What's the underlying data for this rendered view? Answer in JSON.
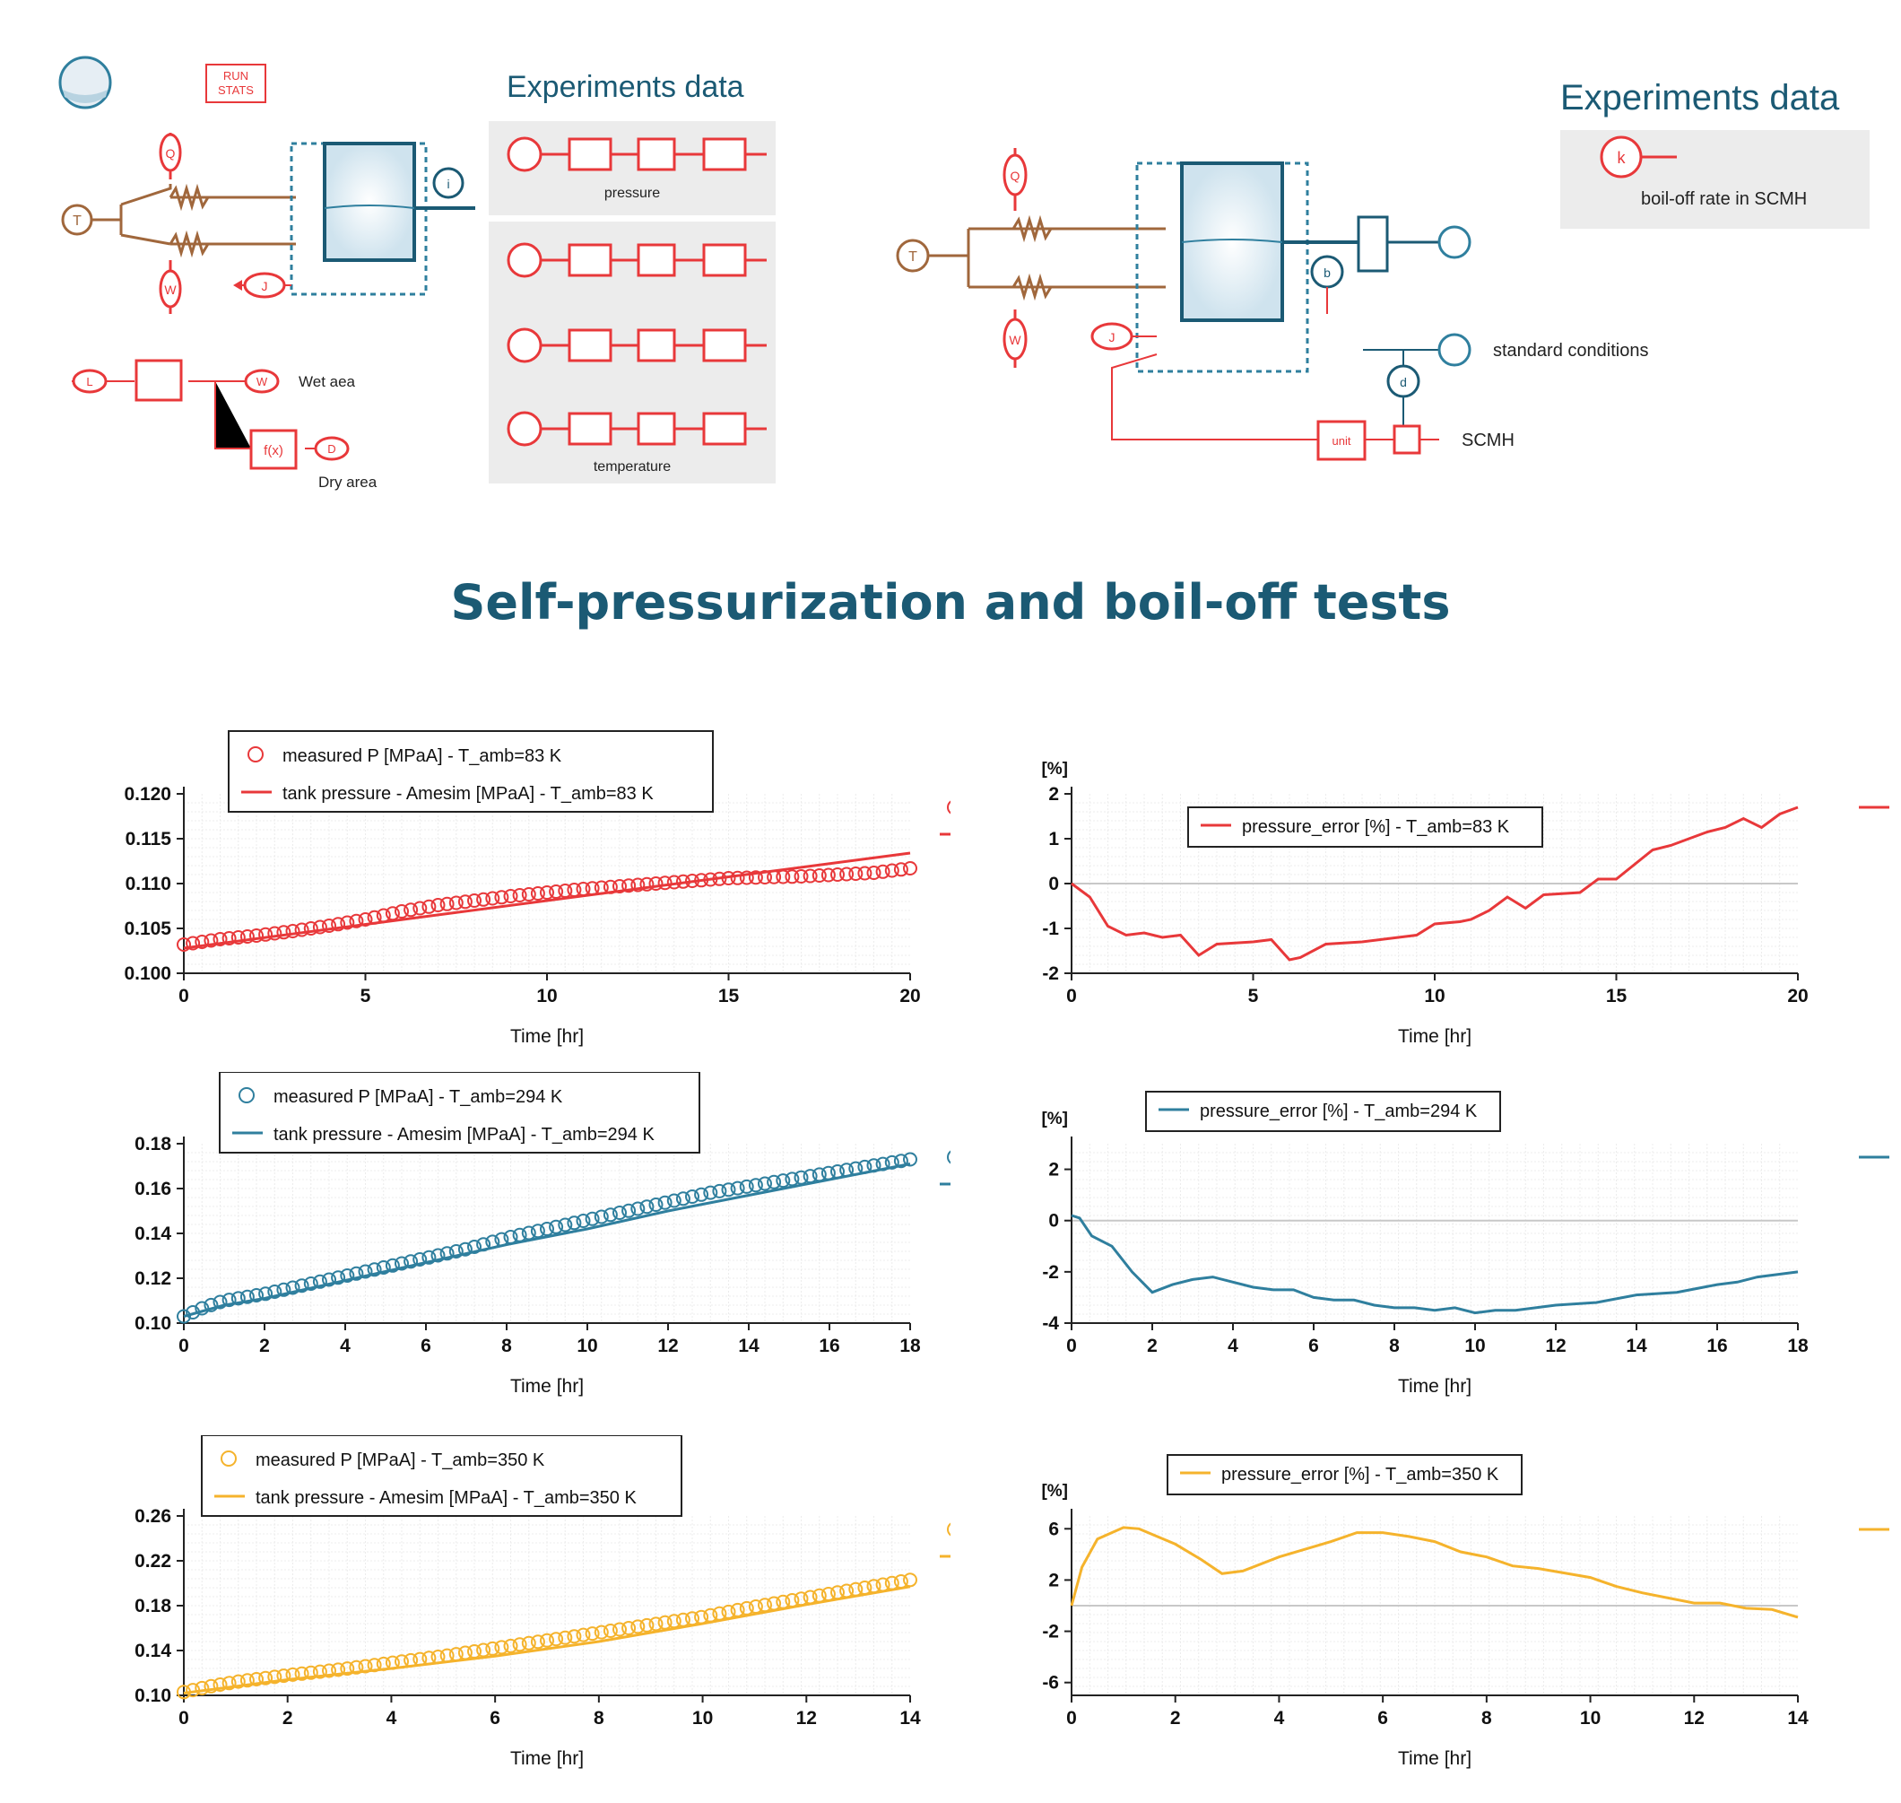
{
  "colors": {
    "red": "#e8383a",
    "teal": "#2f7f9e",
    "orange": "#f5b32c",
    "brown": "#a0673c",
    "blue": "#1b5a74",
    "panel": "#ececec"
  },
  "diagram": {
    "run_stats_label_1": "RUN",
    "run_stats_label_2": "STATS",
    "left_panel_title": "Experiments data",
    "pressure_label": "pressure",
    "temperature_label": "temperature",
    "wet_label": "Wet aea",
    "dry_label": "Dry area",
    "unit_label": "unit",
    "fx_label": "f(x)",
    "right_panel_title": "Experiments data",
    "boiloff_label": "boil-off rate in SCMH",
    "standard_conditions": "standard conditions",
    "scmh_label": "SCMH",
    "letters": {
      "T": "T",
      "Q": "Q",
      "W": "W",
      "J": "J",
      "L": "L",
      "D": "D",
      "k": "k",
      "b": "b",
      "d": "d",
      "i": "i"
    }
  },
  "page_title": "Self-pressurization and boil-off tests",
  "chart_data": [
    {
      "type": "scatter+line",
      "panel": "pressure-83K",
      "color": "#e8383a",
      "title": "",
      "xlabel": "Time [hr]",
      "ylabel": "",
      "xlim": [
        0,
        20
      ],
      "ylim": [
        0.1,
        0.12
      ],
      "xticks": [
        0,
        5,
        10,
        15,
        20
      ],
      "yticks": [
        "0.100",
        "0.105",
        "0.110",
        "0.115",
        "0.120"
      ],
      "legend": [
        "measured P [MPaA] - T_amb=83 K",
        "tank pressure - Amesim [MPaA] - T_amb=83 K"
      ],
      "series": [
        {
          "name": "measured P [MPaA] - T_amb=83 K",
          "style": "markers",
          "x": [
            0,
            1,
            2,
            3,
            4,
            5,
            6,
            7,
            8,
            9,
            10,
            11,
            12,
            13,
            14,
            15,
            16,
            17,
            18,
            19,
            20
          ],
          "y": [
            0.1032,
            0.1038,
            0.1042,
            0.1047,
            0.1053,
            0.106,
            0.1069,
            0.1076,
            0.1081,
            0.1086,
            0.109,
            0.1094,
            0.1097,
            0.11,
            0.1103,
            0.1106,
            0.1107,
            0.1108,
            0.111,
            0.1112,
            0.1117
          ]
        },
        {
          "name": "tank pressure - Amesim [MPaA] - T_amb=83 K",
          "style": "line",
          "x": [
            0,
            20
          ],
          "y": [
            0.1028,
            0.1134
          ]
        }
      ]
    },
    {
      "type": "line",
      "panel": "error-83K",
      "color": "#e8383a",
      "title": "",
      "xlabel": "Time [hr]",
      "ylabel": "[%]",
      "xlim": [
        0,
        20
      ],
      "ylim": [
        -2,
        2
      ],
      "xticks": [
        0,
        5,
        10,
        15,
        20
      ],
      "yticks": [
        "-2",
        "-1",
        "0",
        "1",
        "2"
      ],
      "legend": [
        "pressure_error [%] - T_amb=83 K"
      ],
      "series": [
        {
          "name": "pressure_error [%] - T_amb=83 K",
          "style": "line",
          "x": [
            0,
            0.5,
            1,
            1.5,
            2,
            2.5,
            3,
            3.5,
            4,
            5,
            5.5,
            6,
            6.3,
            7,
            8,
            9,
            9.5,
            10,
            10.7,
            11,
            11.5,
            12,
            12.5,
            13,
            14,
            14.5,
            15,
            16,
            16.5,
            17,
            17.5,
            18,
            18.5,
            19,
            19.5,
            20
          ],
          "y": [
            0,
            -0.3,
            -0.95,
            -1.15,
            -1.1,
            -1.2,
            -1.15,
            -1.6,
            -1.35,
            -1.3,
            -1.25,
            -1.7,
            -1.65,
            -1.35,
            -1.3,
            -1.2,
            -1.15,
            -0.9,
            -0.85,
            -0.8,
            -0.6,
            -0.3,
            -0.55,
            -0.25,
            -0.2,
            0.1,
            0.1,
            0.75,
            0.85,
            1.0,
            1.15,
            1.25,
            1.45,
            1.25,
            1.55,
            1.7
          ]
        }
      ]
    },
    {
      "type": "scatter+line",
      "panel": "pressure-294K",
      "color": "#2f7f9e",
      "title": "",
      "xlabel": "Time [hr]",
      "ylabel": "",
      "xlim": [
        0,
        18
      ],
      "ylim": [
        0.1,
        0.18
      ],
      "xticks": [
        0,
        2,
        4,
        6,
        8,
        10,
        12,
        14,
        16,
        18
      ],
      "yticks": [
        "0.10",
        "0.12",
        "0.14",
        "0.16",
        "0.18"
      ],
      "legend": [
        "measured P [MPaA] - T_amb=294 K",
        "tank pressure - Amesim [MPaA] - T_amb=294 K"
      ],
      "series": [
        {
          "name": "measured P [MPaA] - T_amb=294 K",
          "style": "markers",
          "x": [
            0,
            0.5,
            1,
            2,
            3,
            4,
            5,
            6,
            7,
            8,
            9,
            10,
            11,
            12,
            13,
            14,
            15,
            16,
            17,
            18
          ],
          "y": [
            0.103,
            0.107,
            0.11,
            0.113,
            0.117,
            0.121,
            0.125,
            0.129,
            0.133,
            0.138,
            0.142,
            0.146,
            0.15,
            0.154,
            0.158,
            0.161,
            0.164,
            0.167,
            0.17,
            0.173
          ]
        },
        {
          "name": "tank pressure - Amesim [MPaA] - T_amb=294 K",
          "style": "line",
          "x": [
            0,
            1,
            2,
            4,
            6,
            8,
            10,
            12,
            14,
            16,
            18
          ],
          "y": [
            0.103,
            0.108,
            0.111,
            0.119,
            0.127,
            0.135,
            0.142,
            0.15,
            0.157,
            0.164,
            0.171
          ]
        }
      ]
    },
    {
      "type": "line",
      "panel": "error-294K",
      "color": "#2f7f9e",
      "title": "",
      "xlabel": "Time [hr]",
      "ylabel": "[%]",
      "xlim": [
        0,
        18
      ],
      "ylim": [
        -4,
        3
      ],
      "xticks": [
        0,
        2,
        4,
        6,
        8,
        10,
        12,
        14,
        16,
        18
      ],
      "yticks": [
        "-4",
        "-2",
        "0",
        "2"
      ],
      "legend": [
        "pressure_error [%] - T_amb=294 K"
      ],
      "series": [
        {
          "name": "pressure_error [%] - T_amb=294 K",
          "style": "line",
          "x": [
            0,
            0.2,
            0.5,
            1,
            1.5,
            2,
            2.5,
            3,
            3.5,
            4,
            4.5,
            5,
            5.5,
            6,
            6.5,
            7,
            7.5,
            8,
            8.5,
            9,
            9.5,
            10,
            10.5,
            11,
            12,
            13,
            14,
            15,
            16,
            16.5,
            17,
            17.5,
            18
          ],
          "y": [
            0.2,
            0.1,
            -0.6,
            -1.0,
            -2.0,
            -2.8,
            -2.5,
            -2.3,
            -2.2,
            -2.4,
            -2.6,
            -2.7,
            -2.7,
            -3.0,
            -3.1,
            -3.1,
            -3.3,
            -3.4,
            -3.4,
            -3.5,
            -3.4,
            -3.6,
            -3.5,
            -3.5,
            -3.3,
            -3.2,
            -2.9,
            -2.8,
            -2.5,
            -2.4,
            -2.2,
            -2.1,
            -2.0
          ]
        }
      ]
    },
    {
      "type": "scatter+line",
      "panel": "pressure-350K",
      "color": "#f5b32c",
      "title": "",
      "xlabel": "Time [hr]",
      "ylabel": "",
      "xlim": [
        0,
        14
      ],
      "ylim": [
        0.1,
        0.26
      ],
      "xticks": [
        0,
        2,
        4,
        6,
        8,
        10,
        12,
        14
      ],
      "yticks": [
        "0.10",
        "0.14",
        "0.18",
        "0.22",
        "0.26"
      ],
      "legend": [
        "measured P [MPaA] - T_amb=350 K",
        "tank pressure - Amesim [MPaA] - T_amb=350 K"
      ],
      "series": [
        {
          "name": "measured P [MPaA] - T_amb=350 K",
          "style": "markers",
          "x": [
            0,
            0.5,
            1,
            2,
            3,
            4,
            5,
            6,
            7,
            8,
            9,
            10,
            11,
            12,
            13,
            14
          ],
          "y": [
            0.103,
            0.108,
            0.112,
            0.118,
            0.123,
            0.129,
            0.135,
            0.142,
            0.149,
            0.156,
            0.163,
            0.17,
            0.179,
            0.187,
            0.195,
            0.203
          ]
        },
        {
          "name": "tank pressure - Amesim [MPaA] - T_amb=350 K",
          "style": "line",
          "x": [
            0,
            1,
            2,
            4,
            6,
            8,
            10,
            12,
            14
          ],
          "y": [
            0.102,
            0.108,
            0.114,
            0.124,
            0.135,
            0.148,
            0.164,
            0.181,
            0.197
          ]
        }
      ]
    },
    {
      "type": "line",
      "panel": "error-350K",
      "color": "#f5b32c",
      "title": "",
      "xlabel": "Time [hr]",
      "ylabel": "[%]",
      "xlim": [
        0,
        14
      ],
      "ylim": [
        -7,
        7
      ],
      "xticks": [
        0,
        2,
        4,
        6,
        8,
        10,
        12,
        14
      ],
      "yticks": [
        "-6",
        "-2",
        "2",
        "6"
      ],
      "legend": [
        "pressure_error [%] - T_amb=350 K"
      ],
      "series": [
        {
          "name": "pressure_error [%] - T_amb=350 K",
          "style": "line",
          "x": [
            0,
            0.2,
            0.5,
            1,
            1.3,
            2,
            2.5,
            2.9,
            3.3,
            4,
            5,
            5.5,
            6,
            6.5,
            7,
            7.5,
            8,
            8.5,
            9,
            10,
            10.5,
            11,
            12,
            12.5,
            13,
            13.5,
            14
          ],
          "y": [
            0,
            3.0,
            5.2,
            6.1,
            6.0,
            4.8,
            3.6,
            2.5,
            2.7,
            3.8,
            5.0,
            5.7,
            5.7,
            5.4,
            5.0,
            4.2,
            3.8,
            3.1,
            2.9,
            2.2,
            1.5,
            1.0,
            0.2,
            0.2,
            -0.2,
            -0.3,
            -0.9
          ]
        }
      ]
    }
  ]
}
